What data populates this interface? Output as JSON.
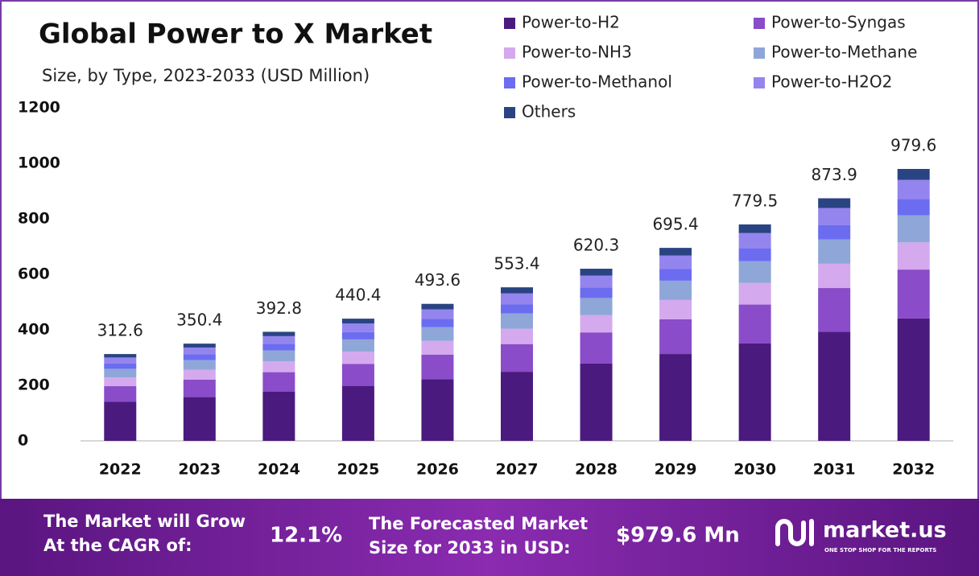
{
  "chart_data": {
    "type": "stacked_bar",
    "title": "Global Power to X Market",
    "subtitle": "Size, by Type, 2023-2033 (USD Million)",
    "categories": [
      "2022",
      "2023",
      "2024",
      "2025",
      "2026",
      "2027",
      "2028",
      "2029",
      "2030",
      "2031",
      "2032"
    ],
    "series": [
      {
        "name": "Power-to-H2",
        "color": "#4b1a7e",
        "values": [
          140.7,
          157.7,
          176.8,
          198.2,
          222.1,
          249.0,
          279.1,
          312.9,
          350.8,
          393.3,
          440.8
        ]
      },
      {
        "name": "Power-to-Syngas",
        "color": "#8a4cc9",
        "values": [
          56.3,
          63.1,
          70.7,
          79.3,
          88.8,
          99.6,
          111.7,
          125.2,
          140.3,
          157.3,
          176.3
        ]
      },
      {
        "name": "Power-to-NH3",
        "color": "#d4a9ee",
        "values": [
          31.3,
          35.0,
          39.3,
          44.0,
          49.4,
          55.3,
          62.0,
          69.5,
          78.0,
          87.4,
          98.0
        ]
      },
      {
        "name": "Power-to-Methane",
        "color": "#8fa6d8",
        "values": [
          31.3,
          35.0,
          39.3,
          44.0,
          49.4,
          55.3,
          62.0,
          69.5,
          78.0,
          87.4,
          98.0
        ]
      },
      {
        "name": "Power-to-Methanol",
        "color": "#6b6cf0",
        "values": [
          18.8,
          21.0,
          23.6,
          26.4,
          29.6,
          33.2,
          37.2,
          41.7,
          46.8,
          52.4,
          58.8
        ]
      },
      {
        "name": "Power-to-H2O2",
        "color": "#9485ee",
        "values": [
          21.9,
          24.5,
          27.5,
          30.8,
          34.6,
          38.7,
          43.4,
          48.7,
          54.6,
          61.2,
          68.6
        ]
      },
      {
        "name": "Others",
        "color": "#2a4483",
        "values": [
          12.5,
          14.0,
          15.7,
          17.6,
          19.7,
          22.1,
          24.8,
          27.8,
          31.2,
          35.0,
          39.2
        ]
      }
    ],
    "totals": [
      312.6,
      350.4,
      392.8,
      440.4,
      493.6,
      553.4,
      620.3,
      695.4,
      779.5,
      873.9,
      979.6
    ],
    "ylim": [
      0,
      1200
    ],
    "yticks": [
      0,
      200,
      400,
      600,
      800,
      1000,
      1200
    ],
    "grid": false
  },
  "footer": {
    "cagr_text": [
      "The Market will Grow",
      "At the CAGR of:"
    ],
    "cagr_value": "12.1%",
    "forecast_text": [
      "The Forecasted Market",
      "Size for 2033 in USD:"
    ],
    "forecast_value": "$979.6 Mn",
    "brand": "market.us",
    "tagline": "ONE STOP SHOP FOR THE REPORTS"
  }
}
